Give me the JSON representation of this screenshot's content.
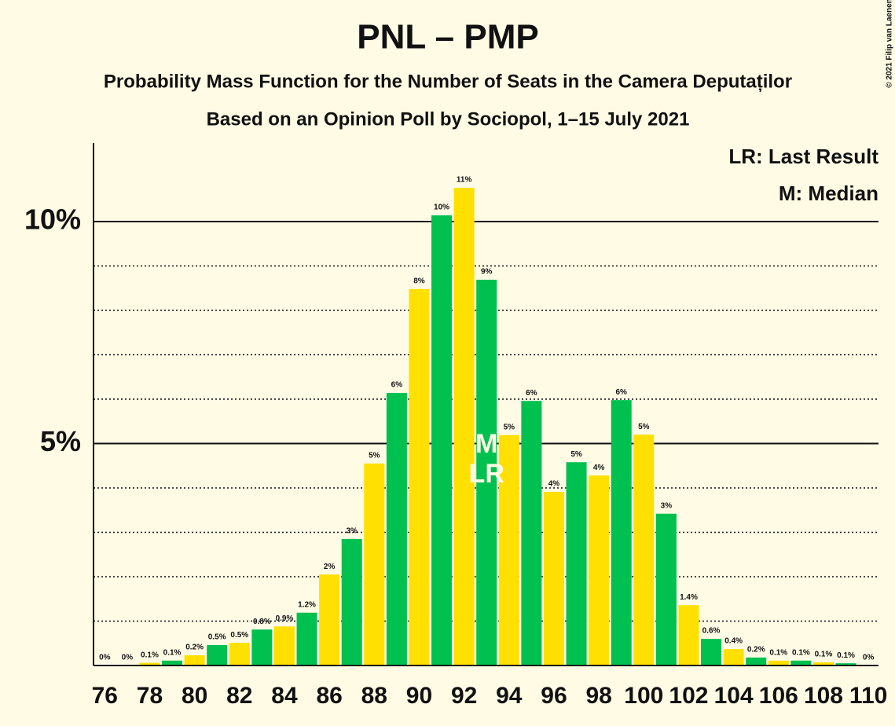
{
  "chart_data": {
    "type": "bar",
    "title": "PNL – PMP",
    "subtitle": "Probability Mass Function for the Number of Seats in the Camera Deputaților",
    "subtitle2": "Based on an Opinion Poll by Sociopol, 1–15 July 2021",
    "copyright": "© 2021 Filip van Laenen",
    "legend": [
      "LR: Last Result",
      "M: Median"
    ],
    "legend_position": "upper right",
    "x": [
      76,
      77,
      78,
      79,
      80,
      81,
      82,
      83,
      84,
      85,
      86,
      87,
      88,
      89,
      90,
      91,
      92,
      93,
      94,
      95,
      96,
      97,
      98,
      99,
      100,
      101,
      102,
      103,
      104,
      105,
      106,
      107,
      108,
      109,
      110
    ],
    "values": [
      0,
      0,
      0.06,
      0.11,
      0.23,
      0.46,
      0.51,
      0.81,
      0.88,
      1.19,
      2.05,
      2.85,
      4.55,
      6.14,
      8.48,
      10.14,
      10.76,
      8.69,
      5.19,
      5.96,
      3.91,
      4.58,
      4.28,
      5.98,
      5.2,
      3.42,
      1.36,
      0.6,
      0.37,
      0.18,
      0.11,
      0.11,
      0.07,
      0.05,
      0
    ],
    "value_labels": [
      "0%",
      "0%",
      "0.1%",
      "0.1%",
      "0.2%",
      "0.5%",
      "0.5%",
      "0.8%",
      "0.9%",
      "1.2%",
      "2%",
      "3%",
      "5%",
      "6%",
      "8%",
      "10%",
      "11%",
      "9%",
      "5%",
      "6%",
      "4%",
      "5%",
      "4%",
      "6%",
      "5%",
      "3%",
      "1.4%",
      "0.6%",
      "0.4%",
      "0.2%",
      "0.1%",
      "0.1%",
      "0.1%",
      "0.1%",
      "0%"
    ],
    "even_color": "#ffe000",
    "odd_color": "#00c050",
    "xlim": [
      75.5,
      110.45
    ],
    "xticks": [
      76,
      78,
      80,
      82,
      84,
      86,
      88,
      90,
      92,
      94,
      96,
      98,
      100,
      102,
      104,
      106,
      108,
      110
    ],
    "ylim": [
      0,
      11.77
    ],
    "yticks": [
      {
        "value": 5,
        "label": "5%"
      },
      {
        "value": 10,
        "label": "10%"
      }
    ],
    "minor_yticks": [
      1,
      2,
      3,
      4,
      6,
      7,
      8,
      9
    ],
    "grid": true,
    "annotations": [
      {
        "text": "M",
        "x": 93
      },
      {
        "text": "LR",
        "x": 93
      }
    ]
  }
}
